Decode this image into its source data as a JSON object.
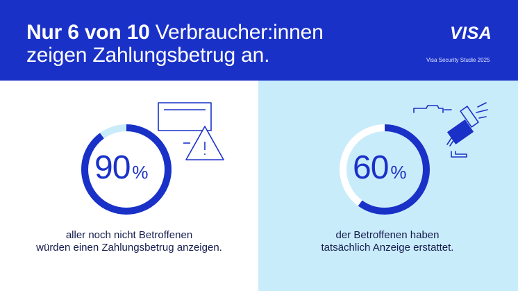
{
  "header": {
    "title_line1_bold": "Nur 6 von 10",
    "title_line1_rest": " Verbraucher:innen",
    "title_line2": "zeigen Zahlungsbetrug an.",
    "logo": "VISA",
    "subtitle": "Visa Security Studie 2025"
  },
  "stats": [
    {
      "value": "90",
      "unit": "%",
      "fraction": 0.9,
      "caption_line1": "aller noch nicht Betroffenen",
      "caption_line2": "würden einen Zahlungsbetrug anzeigen.",
      "icon": "warning-document-icon"
    },
    {
      "value": "60",
      "unit": "%",
      "fraction": 0.6,
      "caption_line1": "der Betroffenen haben",
      "caption_line2": "tatsächlich Anzeige erstattet.",
      "icon": "gavel-icon"
    }
  ],
  "colors": {
    "brand_blue": "#1a31c8",
    "light_blue": "#c9ecfb",
    "track_light": "#c9ecfb",
    "track_white": "#ffffff",
    "text_dark": "#141b4d"
  }
}
